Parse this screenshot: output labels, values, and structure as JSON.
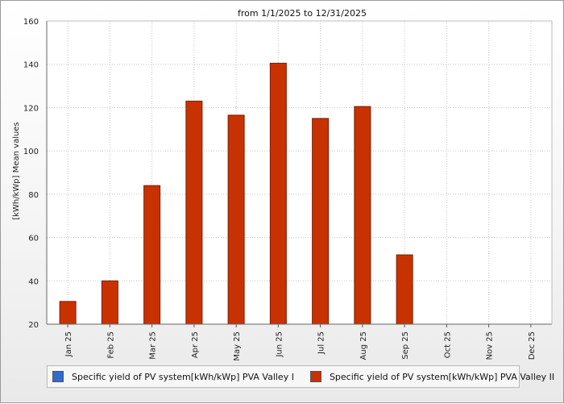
{
  "chart_data": {
    "type": "bar",
    "title": "from 1/1/2025 to 12/31/2025",
    "ylabel": "[kWh/kWp] Mean values",
    "xlabel": "",
    "ylim": [
      20,
      160
    ],
    "yticks": [
      20,
      40,
      60,
      80,
      100,
      120,
      140,
      160
    ],
    "grid": true,
    "legend_position": "bottom",
    "categories": [
      "Jan 25",
      "Feb 25",
      "Mar 25",
      "Apr 25",
      "May 25",
      "Jun 25",
      "Jul 25",
      "Aug 25",
      "Sep 25",
      "Oct 25",
      "Nov 25",
      "Dec 25"
    ],
    "series": [
      {
        "name": "Specific yield of PV system[kWh/kWp] PVA Valley I",
        "color": "#2f6bd1",
        "values": [
          null,
          null,
          null,
          null,
          null,
          null,
          null,
          null,
          null,
          null,
          null,
          null
        ]
      },
      {
        "name": "Specific yield of PV system[kWh/kWp] PVA Valley II",
        "color": "#c83200",
        "values": [
          30.5,
          40,
          84,
          123,
          116.5,
          140.5,
          115,
          120.5,
          52,
          null,
          null,
          null
        ]
      }
    ]
  }
}
